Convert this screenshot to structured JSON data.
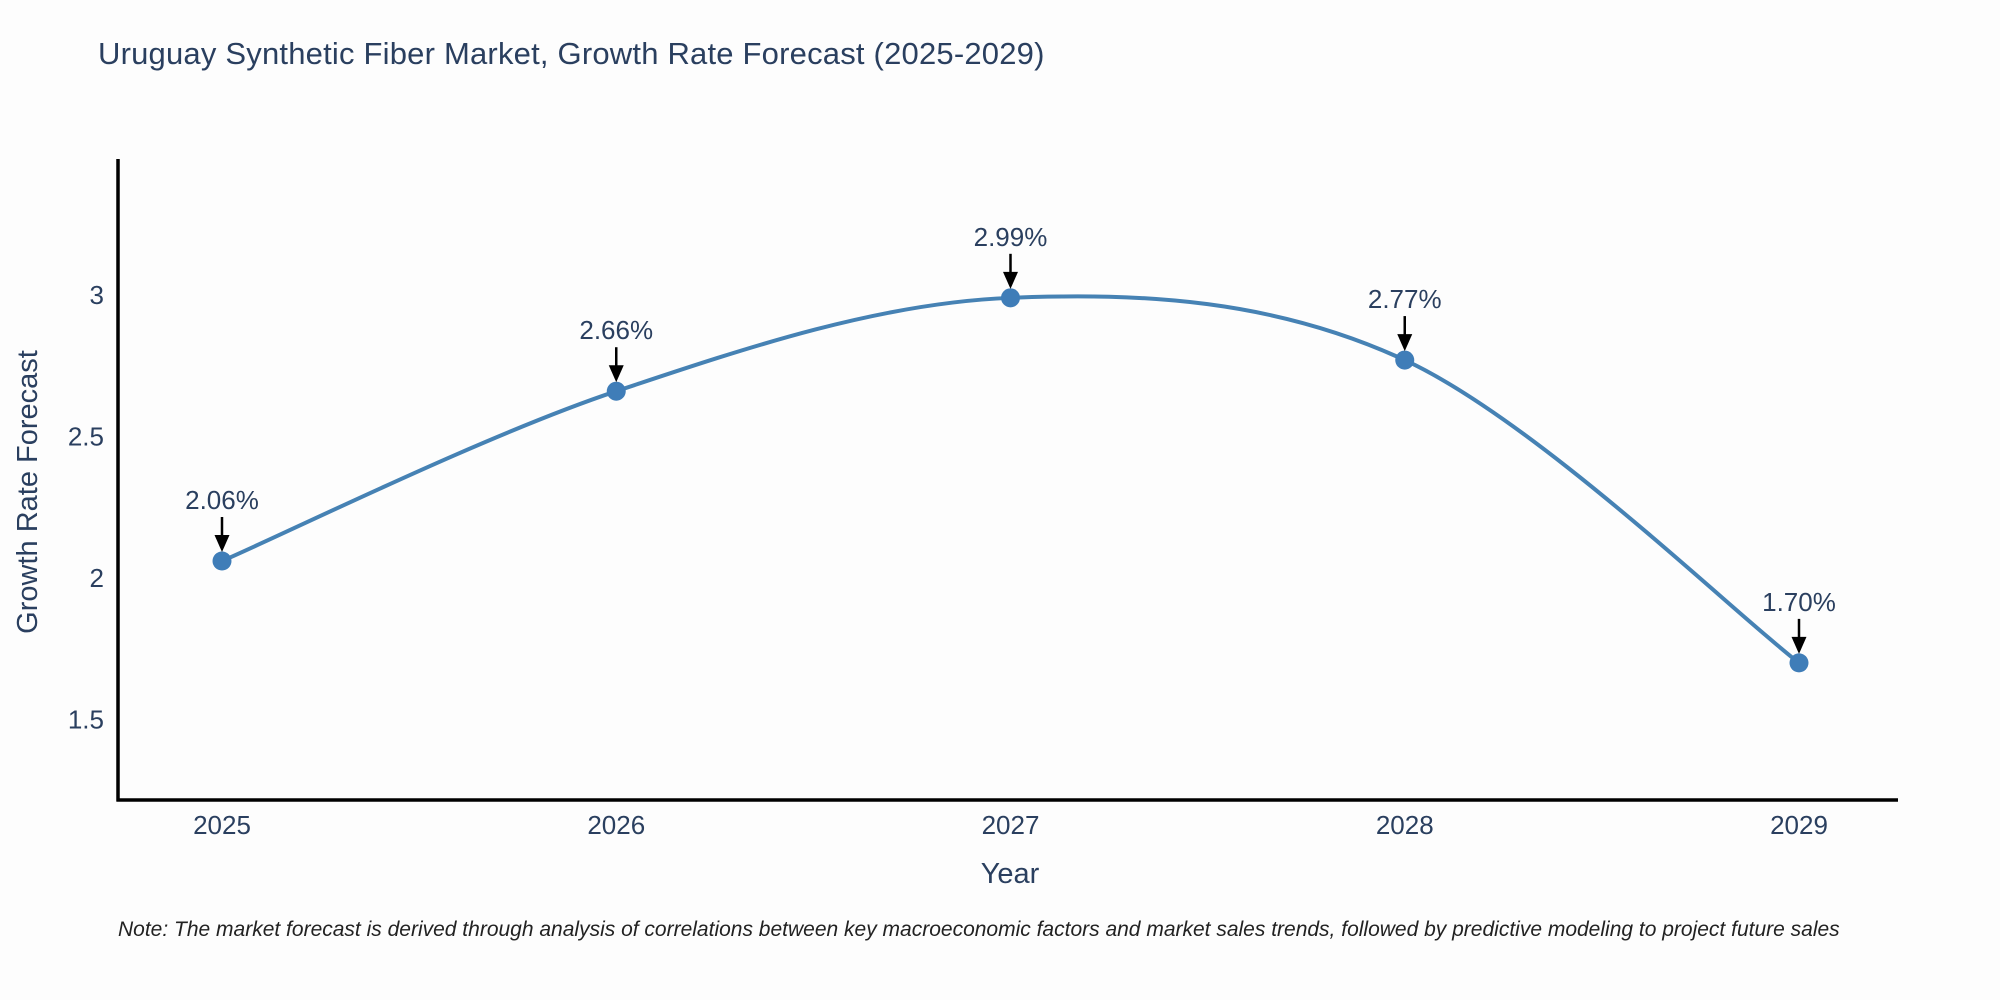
{
  "title": {
    "text": "Uruguay Synthetic Fiber Market, Growth Rate Forecast (2025-2029)",
    "color": "#2a3f5f"
  },
  "note": {
    "text": "Note: The market forecast is derived through analysis of correlations between key macroeconomic factors and market sales trends, followed by predictive modeling to project future sales"
  },
  "chart_data": {
    "type": "line",
    "line_shape": "spline",
    "x": [
      "2025",
      "2026",
      "2027",
      "2028",
      "2029"
    ],
    "series": [
      {
        "name": "Growth Rate Forecast",
        "values": [
          2.06,
          2.66,
          2.99,
          2.77,
          1.7
        ]
      }
    ],
    "point_labels": [
      "2.06%",
      "2.66%",
      "2.99%",
      "2.77%",
      "1.70%"
    ],
    "title": "Uruguay Synthetic Fiber Market, Growth Rate Forecast (2025-2029)",
    "xlabel": "Year",
    "ylabel": "Growth Rate Forecast",
    "yticks": [
      1.5,
      2,
      2.5,
      3
    ],
    "ylim": [
      1.2155,
      3.4805
    ],
    "grid": false,
    "legend": "none",
    "annotations": "value labels with downward arrows above each point",
    "colors": {
      "line": "#4682b4",
      "marker": "#3f7db8",
      "axis": "#000000",
      "tick_text": "#2a3f5f",
      "annotation_text": "#2a3f5f",
      "annotation_arrow": "#000000",
      "background": "#fdfdfd"
    }
  }
}
